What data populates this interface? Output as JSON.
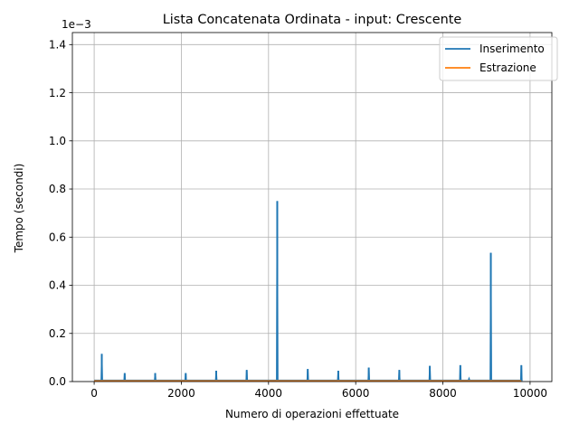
{
  "chart_data": {
    "type": "line",
    "title": "Lista Concatenata Ordinata - input: Crescente",
    "xlabel": "Numero di operazioni effettuate",
    "ylabel": "Tempo (secondi)",
    "y_offset_label": "1e−3",
    "y_scale_factor": 0.001,
    "xlim": [
      -500,
      10500
    ],
    "ylim": [
      0,
      1.45
    ],
    "xticks": [
      0,
      2000,
      4000,
      6000,
      8000,
      10000
    ],
    "xtick_labels": [
      "0",
      "2000",
      "4000",
      "6000",
      "8000",
      "10000"
    ],
    "yticks": [
      0,
      0.2,
      0.4,
      0.6,
      0.8,
      1.0,
      1.2,
      1.4
    ],
    "ytick_labels": [
      "0.0",
      "0.2",
      "0.4",
      "0.6",
      "0.8",
      "1.0",
      "1.2",
      "1.4"
    ],
    "grid": true,
    "legend_position": "upper right",
    "series": [
      {
        "name": "Inserimento",
        "color": "#1f77b4",
        "baseline": 0.005,
        "spikes": [
          {
            "x": 175,
            "y": 0.115
          },
          {
            "x": 700,
            "y": 0.035
          },
          {
            "x": 1400,
            "y": 0.035
          },
          {
            "x": 2100,
            "y": 0.035
          },
          {
            "x": 2800,
            "y": 0.045
          },
          {
            "x": 3500,
            "y": 0.048
          },
          {
            "x": 4200,
            "y": 0.75
          },
          {
            "x": 4900,
            "y": 0.052
          },
          {
            "x": 5600,
            "y": 0.045
          },
          {
            "x": 6300,
            "y": 0.058
          },
          {
            "x": 7000,
            "y": 0.048
          },
          {
            "x": 7700,
            "y": 0.065
          },
          {
            "x": 8400,
            "y": 0.068
          },
          {
            "x": 8600,
            "y": 0.012
          },
          {
            "x": 9100,
            "y": 0.535
          },
          {
            "x": 9800,
            "y": 0.068
          }
        ]
      },
      {
        "name": "Estrazione",
        "color": "#ff7f0e",
        "baseline": 0.003,
        "x_range": [
          0,
          9800
        ]
      }
    ]
  }
}
